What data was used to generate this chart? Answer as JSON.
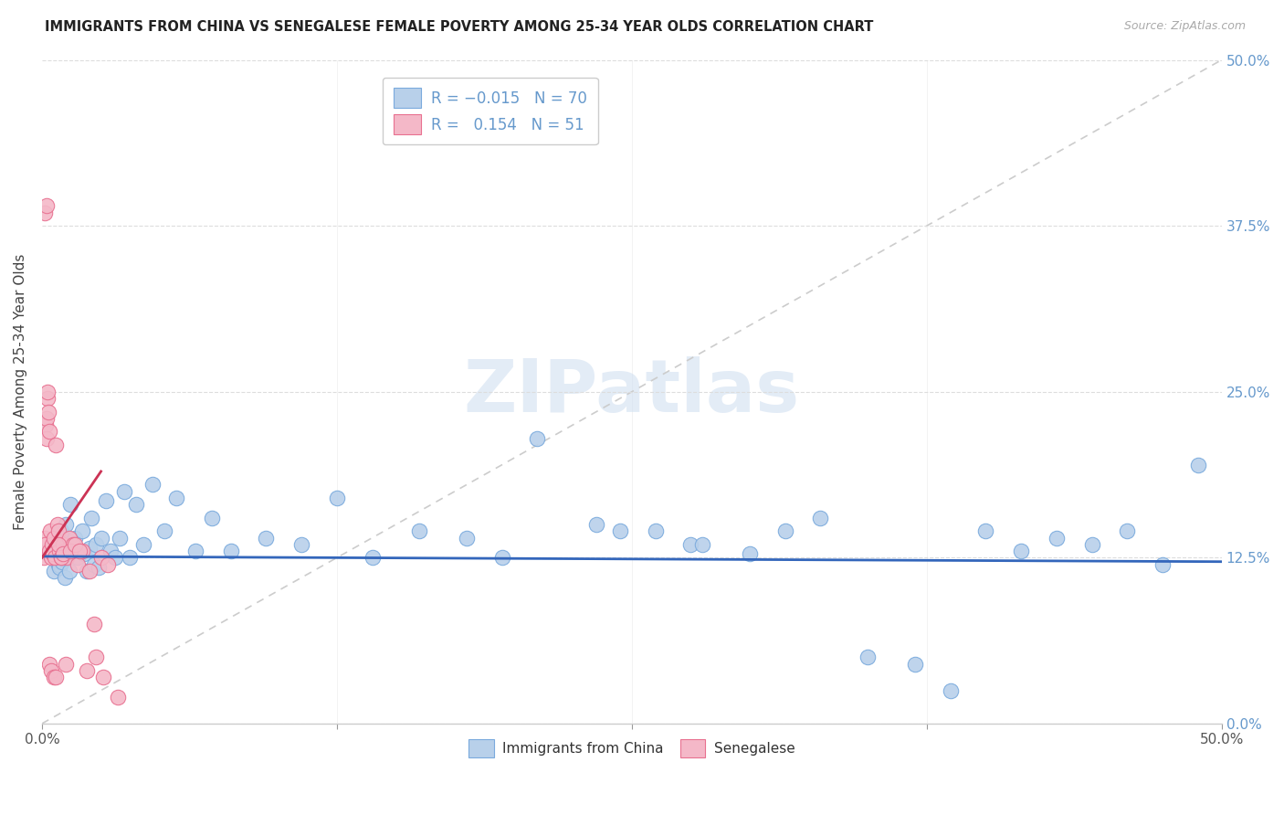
{
  "title": "IMMIGRANTS FROM CHINA VS SENEGALESE FEMALE POVERTY AMONG 25-34 YEAR OLDS CORRELATION CHART",
  "source": "Source: ZipAtlas.com",
  "ylabel": "Female Poverty Among 25-34 Year Olds",
  "ytick_labels": [
    "0.0%",
    "12.5%",
    "25.0%",
    "37.5%",
    "50.0%"
  ],
  "ytick_values": [
    0.0,
    12.5,
    25.0,
    37.5,
    50.0
  ],
  "xlim": [
    0.0,
    50.0
  ],
  "ylim": [
    0.0,
    50.0
  ],
  "color_blue": "#b8d0ea",
  "color_pink": "#f4b8c8",
  "color_blue_edge": "#7aaadd",
  "color_pink_edge": "#e87090",
  "color_blue_line": "#3366bb",
  "color_pink_line": "#cc3355",
  "color_grid": "#dddddd",
  "color_right_axis": "#6699cc",
  "color_title": "#222222",
  "color_source": "#aaaaaa",
  "watermark": "ZIPatlas",
  "blue_scatter_x": [
    0.3,
    0.4,
    0.5,
    0.55,
    0.6,
    0.65,
    0.7,
    0.75,
    0.8,
    0.85,
    0.9,
    0.95,
    1.0,
    1.05,
    1.1,
    1.15,
    1.2,
    1.3,
    1.4,
    1.5,
    1.6,
    1.7,
    1.8,
    1.9,
    2.0,
    2.1,
    2.2,
    2.3,
    2.4,
    2.5,
    2.7,
    2.9,
    3.1,
    3.3,
    3.5,
    3.7,
    4.0,
    4.3,
    4.7,
    5.2,
    5.7,
    6.5,
    7.2,
    8.0,
    9.5,
    11.0,
    12.5,
    14.0,
    16.0,
    18.0,
    19.5,
    21.0,
    23.5,
    24.5,
    26.0,
    27.5,
    28.0,
    30.0,
    31.5,
    33.0,
    35.0,
    37.0,
    38.5,
    40.0,
    41.5,
    43.0,
    44.5,
    46.0,
    47.5,
    49.0
  ],
  "blue_scatter_y": [
    12.8,
    13.2,
    11.5,
    14.0,
    12.5,
    13.8,
    12.0,
    11.8,
    14.5,
    12.2,
    13.5,
    11.0,
    15.0,
    12.8,
    13.0,
    11.5,
    16.5,
    13.5,
    14.0,
    12.5,
    13.0,
    14.5,
    12.8,
    11.5,
    13.2,
    15.5,
    12.0,
    13.5,
    11.8,
    14.0,
    16.8,
    13.0,
    12.5,
    14.0,
    17.5,
    12.5,
    16.5,
    13.5,
    18.0,
    14.5,
    17.0,
    13.0,
    15.5,
    13.0,
    14.0,
    13.5,
    17.0,
    12.5,
    14.5,
    14.0,
    12.5,
    21.5,
    15.0,
    14.5,
    14.5,
    13.5,
    13.5,
    12.8,
    14.5,
    15.5,
    5.0,
    4.5,
    2.5,
    14.5,
    13.0,
    14.0,
    13.5,
    14.5,
    12.0,
    19.5
  ],
  "pink_scatter_x": [
    0.05,
    0.08,
    0.1,
    0.12,
    0.15,
    0.18,
    0.2,
    0.22,
    0.25,
    0.28,
    0.3,
    0.33,
    0.36,
    0.4,
    0.43,
    0.47,
    0.5,
    0.55,
    0.6,
    0.65,
    0.7,
    0.75,
    0.8,
    0.88,
    0.95,
    1.05,
    1.15,
    1.3,
    1.5,
    1.7,
    2.0,
    2.3,
    2.6,
    0.1,
    0.2,
    0.3,
    0.4,
    0.5,
    0.6,
    0.7,
    0.8,
    0.9,
    1.0,
    1.2,
    1.4,
    1.6,
    1.9,
    2.2,
    2.5,
    2.8,
    3.2
  ],
  "pink_scatter_y": [
    13.0,
    12.5,
    14.0,
    13.5,
    22.5,
    21.5,
    23.0,
    24.5,
    25.0,
    23.5,
    22.0,
    13.0,
    14.5,
    12.5,
    13.5,
    12.8,
    14.0,
    12.5,
    21.0,
    15.0,
    14.5,
    13.0,
    12.5,
    13.5,
    13.0,
    12.5,
    14.0,
    13.5,
    12.0,
    13.0,
    11.5,
    5.0,
    3.5,
    38.5,
    39.0,
    4.5,
    4.0,
    3.5,
    3.5,
    13.5,
    12.5,
    12.8,
    4.5,
    13.0,
    13.5,
    13.0,
    4.0,
    7.5,
    12.5,
    12.0,
    2.0
  ]
}
